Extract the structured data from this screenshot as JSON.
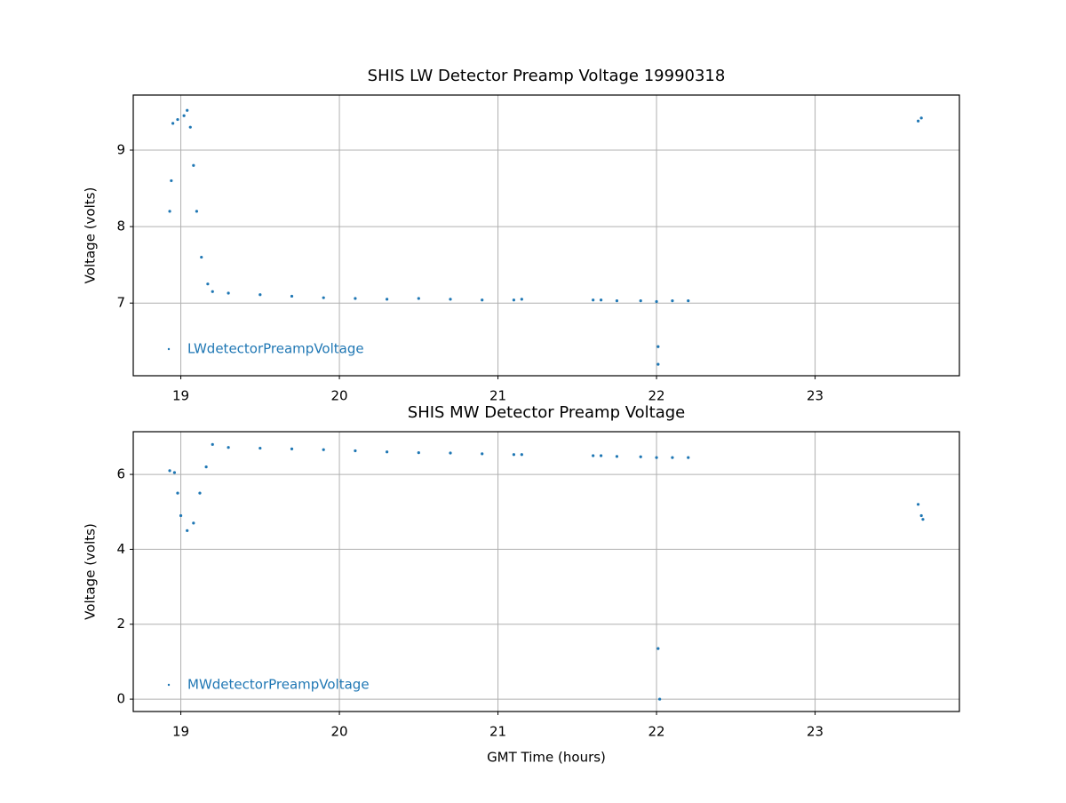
{
  "chart_data": [
    {
      "type": "scatter",
      "title": "SHIS LW Detector Preamp Voltage 19990318",
      "ylabel": "Voltage (volts)",
      "xlim": [
        18.7,
        23.91
      ],
      "ylim": [
        6.05,
        9.72
      ],
      "xticks": [
        19,
        20,
        21,
        22,
        23
      ],
      "yticks": [
        7,
        8,
        9
      ],
      "grid": true,
      "legend": "lower left",
      "series": [
        {
          "name": "LWdetectorPreampVoltage",
          "color": "#1f77b4",
          "x": [
            18.93,
            18.94,
            18.95,
            18.98,
            19.02,
            19.04,
            19.06,
            19.08,
            19.1,
            19.13,
            19.17,
            19.2,
            19.3,
            19.5,
            19.7,
            19.9,
            20.1,
            20.3,
            20.5,
            20.7,
            20.9,
            21.1,
            21.15,
            21.6,
            21.65,
            21.75,
            21.9,
            22.0,
            22.01,
            22.01,
            22.1,
            22.2,
            23.65,
            23.67
          ],
          "values": [
            8.2,
            8.6,
            9.35,
            9.4,
            9.45,
            9.52,
            9.3,
            8.8,
            8.2,
            7.6,
            7.25,
            7.15,
            7.13,
            7.11,
            7.09,
            7.07,
            7.06,
            7.05,
            7.06,
            7.05,
            7.04,
            7.04,
            7.05,
            7.04,
            7.04,
            7.03,
            7.03,
            7.02,
            6.43,
            6.2,
            7.03,
            7.03,
            9.38,
            9.42
          ]
        }
      ]
    },
    {
      "type": "scatter",
      "title": "SHIS MW Detector Preamp Voltage",
      "xlabel": "GMT Time (hours)",
      "ylabel": "Voltage (volts)",
      "xlim": [
        18.7,
        23.91
      ],
      "ylim": [
        -0.33,
        7.14
      ],
      "xticks": [
        19,
        20,
        21,
        22,
        23
      ],
      "yticks": [
        0,
        2,
        4,
        6
      ],
      "grid": true,
      "legend": "lower left",
      "series": [
        {
          "name": "MWdetectorPreampVoltage",
          "color": "#1f77b4",
          "x": [
            18.93,
            18.96,
            18.98,
            19.0,
            19.04,
            19.08,
            19.12,
            19.16,
            19.2,
            19.3,
            19.5,
            19.7,
            19.9,
            20.1,
            20.3,
            20.5,
            20.7,
            20.9,
            21.1,
            21.15,
            21.6,
            21.65,
            21.75,
            21.9,
            22.0,
            22.01,
            22.02,
            22.1,
            22.2,
            23.65,
            23.67,
            23.68
          ],
          "values": [
            6.1,
            6.05,
            5.5,
            4.9,
            4.5,
            4.7,
            5.5,
            6.2,
            6.8,
            6.72,
            6.7,
            6.68,
            6.66,
            6.63,
            6.6,
            6.58,
            6.57,
            6.55,
            6.53,
            6.53,
            6.5,
            6.5,
            6.48,
            6.47,
            6.45,
            1.35,
            0.0,
            6.45,
            6.45,
            5.2,
            4.9,
            4.8
          ]
        }
      ]
    }
  ]
}
